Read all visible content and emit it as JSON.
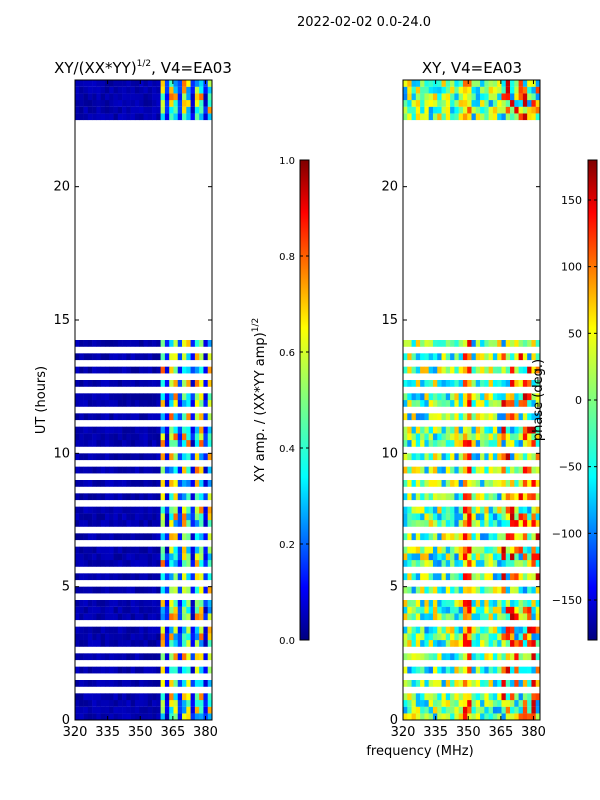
{
  "suptitle": "2022-02-02 0.0-24.0",
  "colors": {
    "background": "#ffffff",
    "axis": "#000000",
    "jet_stops": [
      "#00007f",
      "#0000ff",
      "#007fff",
      "#00ffff",
      "#7fff7f",
      "#ffff00",
      "#ff7f00",
      "#ff0000",
      "#7f0000"
    ]
  },
  "chart_data": [
    {
      "type": "heatmap",
      "title": "XY/(XX*YY)",
      "title_sup": "1/2",
      "title_tail": ", V4=EA03",
      "xlabel": "",
      "ylabel": "UT (hours)",
      "xlim": [
        320,
        383
      ],
      "ylim": [
        0,
        24
      ],
      "xticks": [
        320,
        335,
        350,
        365,
        380
      ],
      "yticks": [
        0,
        5,
        10,
        15,
        20
      ],
      "data_gaps_hours": [
        [
          14.1,
          22.4
        ]
      ],
      "colorbar": {
        "label": "XY amp. / (XX*YY amp)",
        "label_sup": "1/2",
        "range": [
          0.0,
          1.0
        ],
        "ticks": [
          "0.0",
          "0.2",
          "0.4",
          "0.6",
          "0.8",
          "1.0"
        ],
        "tick_values": [
          0.0,
          0.2,
          0.4,
          0.6,
          0.8,
          1.0
        ]
      }
    },
    {
      "type": "heatmap",
      "title": "XY, V4=EA03",
      "xlabel": "frequency (MHz)",
      "ylabel": "phase (deg.)",
      "xlim": [
        320,
        383
      ],
      "ylim": [
        0,
        24
      ],
      "xticks": [
        320,
        335,
        350,
        365,
        380
      ],
      "yticks": [
        0,
        5,
        10,
        15,
        20
      ],
      "data_gaps_hours": [
        [
          14.1,
          22.4
        ]
      ],
      "colorbar": {
        "label": "",
        "range": [
          -180,
          180
        ],
        "ticks": [
          "−150",
          "−100",
          "−50",
          "0",
          "50",
          "100",
          "150"
        ],
        "tick_values": [
          -150,
          -100,
          -50,
          0,
          50,
          100,
          150
        ]
      }
    }
  ]
}
